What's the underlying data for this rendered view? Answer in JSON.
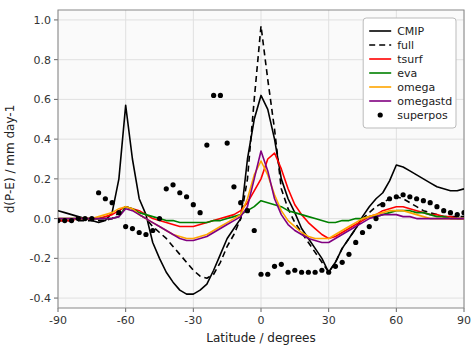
{
  "chart_data": {
    "type": "line",
    "xlabel": "Latitude / degrees",
    "ylabel": "d(P-E) / mm day-1",
    "xlim": [
      -90,
      90
    ],
    "ylim": [
      -0.45,
      1.05
    ],
    "xticks": [
      -90,
      -60,
      -30,
      0,
      30,
      60,
      90
    ],
    "yticks": [
      -0.4,
      -0.2,
      {
        "value": 0.0,
        "label": "0.0"
      },
      0.2,
      0.4,
      0.6,
      0.8,
      {
        "value": 1.0,
        "label": "1.0"
      }
    ],
    "grid": true,
    "legend": "upper right",
    "x": [
      -90,
      -87,
      -84,
      -81,
      -78,
      -75,
      -72,
      -69,
      -66,
      -63,
      -60,
      -57,
      -54,
      -51,
      -48,
      -45,
      -42,
      -39,
      -36,
      -33,
      -30,
      -27,
      -24,
      -21,
      -18,
      -15,
      -12,
      -9,
      -6,
      -3,
      0,
      3,
      6,
      9,
      12,
      15,
      18,
      21,
      24,
      27,
      30,
      33,
      36,
      39,
      42,
      45,
      48,
      51,
      54,
      57,
      60,
      63,
      66,
      69,
      72,
      75,
      78,
      81,
      84,
      87,
      90
    ],
    "series": [
      {
        "name": "CMIP",
        "color": "#000000",
        "line_style": "solid",
        "values": [
          0.04,
          0.03,
          0.02,
          0.01,
          0.0,
          -0.01,
          -0.02,
          -0.01,
          0.03,
          0.2,
          0.57,
          0.3,
          0.1,
          0.02,
          -0.12,
          -0.2,
          -0.27,
          -0.32,
          -0.36,
          -0.38,
          -0.38,
          -0.36,
          -0.33,
          -0.26,
          -0.18,
          -0.1,
          -0.05,
          0.0,
          0.3,
          0.5,
          0.62,
          0.55,
          0.4,
          0.2,
          0.1,
          0.03,
          -0.05,
          -0.1,
          -0.15,
          -0.2,
          -0.27,
          -0.22,
          -0.15,
          -0.1,
          -0.05,
          0.01,
          0.06,
          0.1,
          0.13,
          0.19,
          0.27,
          0.26,
          0.24,
          0.22,
          0.2,
          0.18,
          0.16,
          0.15,
          0.14,
          0.14,
          0.15
        ]
      },
      {
        "name": "full",
        "color": "#000000",
        "line_style": "dashed",
        "values": [
          -0.01,
          -0.01,
          -0.01,
          -0.01,
          -0.01,
          -0.01,
          -0.01,
          -0.01,
          0.0,
          0.03,
          0.06,
          0.05,
          0.02,
          0.0,
          -0.04,
          -0.07,
          -0.1,
          -0.14,
          -0.18,
          -0.22,
          -0.26,
          -0.29,
          -0.3,
          -0.28,
          -0.22,
          -0.14,
          -0.08,
          0.0,
          0.2,
          0.6,
          0.97,
          0.7,
          0.45,
          0.15,
          0.05,
          -0.02,
          -0.07,
          -0.12,
          -0.17,
          -0.22,
          -0.27,
          -0.22,
          -0.15,
          -0.1,
          -0.05,
          0.0,
          0.03,
          0.06,
          0.08,
          0.1,
          0.11,
          0.1,
          0.08,
          0.06,
          0.04,
          0.03,
          0.02,
          0.01,
          0.01,
          0.01,
          0.01
        ]
      },
      {
        "name": "tsurf",
        "color": "#ff0000",
        "line_style": "solid",
        "values": [
          -0.01,
          -0.01,
          -0.01,
          0.0,
          0.0,
          0.0,
          0.0,
          0.01,
          0.02,
          0.04,
          0.06,
          0.05,
          0.04,
          0.02,
          0.0,
          -0.01,
          -0.02,
          -0.03,
          -0.04,
          -0.04,
          -0.04,
          -0.03,
          -0.02,
          -0.01,
          0.0,
          0.01,
          0.02,
          0.04,
          0.08,
          0.14,
          0.2,
          0.3,
          0.33,
          0.25,
          0.15,
          0.07,
          0.02,
          -0.02,
          -0.05,
          -0.08,
          -0.1,
          -0.09,
          -0.07,
          -0.05,
          -0.03,
          -0.01,
          0.01,
          0.02,
          0.04,
          0.05,
          0.06,
          0.06,
          0.05,
          0.04,
          0.03,
          0.02,
          0.02,
          0.01,
          0.01,
          0.0,
          0.0
        ]
      },
      {
        "name": "eva",
        "color": "#008000",
        "line_style": "solid",
        "values": [
          0.0,
          0.0,
          0.0,
          0.0,
          0.0,
          0.0,
          0.0,
          0.0,
          0.0,
          0.01,
          0.06,
          0.05,
          0.03,
          0.02,
          0.01,
          0.0,
          -0.01,
          -0.01,
          -0.02,
          -0.02,
          -0.02,
          -0.02,
          -0.02,
          -0.01,
          -0.01,
          0.0,
          0.01,
          0.02,
          0.04,
          0.06,
          0.09,
          0.08,
          0.07,
          0.06,
          0.04,
          0.03,
          0.02,
          0.01,
          0.0,
          -0.01,
          -0.02,
          -0.02,
          -0.01,
          -0.01,
          0.0,
          0.0,
          0.01,
          0.01,
          0.02,
          0.03,
          0.04,
          0.04,
          0.04,
          0.03,
          0.03,
          0.02,
          0.01,
          0.01,
          0.0,
          0.0,
          0.0
        ]
      },
      {
        "name": "omega",
        "color": "#ffa500",
        "line_style": "solid",
        "values": [
          0.0,
          0.0,
          0.0,
          0.0,
          0.0,
          0.0,
          0.01,
          0.02,
          0.03,
          0.05,
          0.06,
          0.05,
          0.02,
          0.0,
          -0.02,
          -0.04,
          -0.06,
          -0.08,
          -0.09,
          -0.1,
          -0.1,
          -0.09,
          -0.08,
          -0.06,
          -0.04,
          -0.02,
          0.0,
          0.02,
          0.1,
          0.22,
          0.29,
          0.22,
          0.12,
          0.04,
          -0.01,
          -0.04,
          -0.07,
          -0.09,
          -0.1,
          -0.1,
          -0.1,
          -0.08,
          -0.06,
          -0.04,
          -0.02,
          0.0,
          0.01,
          0.02,
          0.03,
          0.04,
          0.04,
          0.04,
          0.03,
          0.02,
          0.01,
          0.0,
          0.0,
          0.0,
          0.0,
          0.0,
          0.0
        ]
      },
      {
        "name": "omegastd",
        "color": "#800080",
        "line_style": "solid",
        "values": [
          0.0,
          0.0,
          0.0,
          0.0,
          0.0,
          0.0,
          0.0,
          0.0,
          0.0,
          0.01,
          0.05,
          0.04,
          0.02,
          0.0,
          -0.02,
          -0.04,
          -0.06,
          -0.08,
          -0.1,
          -0.11,
          -0.11,
          -0.1,
          -0.09,
          -0.07,
          -0.05,
          -0.03,
          -0.01,
          0.01,
          0.06,
          0.2,
          0.34,
          0.24,
          0.1,
          0.02,
          -0.03,
          -0.06,
          -0.08,
          -0.1,
          -0.11,
          -0.12,
          -0.12,
          -0.1,
          -0.08,
          -0.06,
          -0.04,
          -0.02,
          0.0,
          0.01,
          0.02,
          0.02,
          0.02,
          0.01,
          0.01,
          0.0,
          0.0,
          0.0,
          0.0,
          0.0,
          0.0,
          0.0,
          0.0
        ]
      },
      {
        "name": "superpos",
        "color": "#000000",
        "type": "scatter",
        "marker": "circle",
        "values": [
          -0.01,
          -0.01,
          -0.01,
          0.0,
          0.0,
          0.0,
          0.13,
          0.1,
          0.08,
          0.03,
          -0.04,
          -0.05,
          -0.07,
          -0.08,
          -0.06,
          0.0,
          0.15,
          0.17,
          0.13,
          0.11,
          0.07,
          0.03,
          0.37,
          0.62,
          0.62,
          0.38,
          0.16,
          0.08,
          0.04,
          -0.06,
          -0.28,
          -0.28,
          -0.24,
          -0.23,
          -0.27,
          -0.26,
          -0.27,
          -0.27,
          -0.27,
          -0.26,
          -0.27,
          -0.24,
          -0.22,
          -0.18,
          -0.12,
          -0.07,
          -0.04,
          0.0,
          0.07,
          0.1,
          0.11,
          0.12,
          0.11,
          0.1,
          0.09,
          0.08,
          0.06,
          0.04,
          0.03,
          0.02,
          0.03
        ]
      }
    ]
  }
}
